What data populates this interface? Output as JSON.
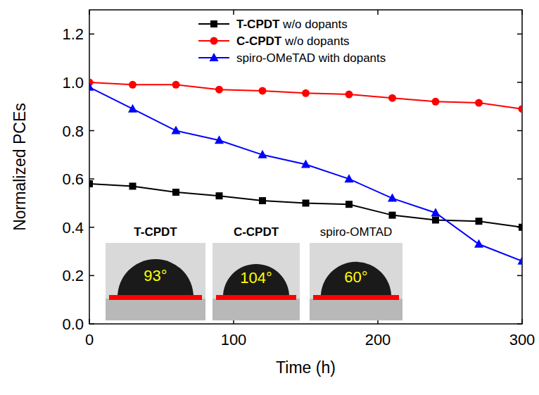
{
  "chart_data": {
    "type": "line",
    "x_label": "Time (h)",
    "y_label": "Normalized PCEs",
    "x": [
      0,
      30,
      60,
      90,
      120,
      150,
      180,
      210,
      240,
      270,
      300
    ],
    "series": [
      {
        "name": "T-CPDT w/o dopants",
        "color": "#000000",
        "marker": "square",
        "values": [
          0.58,
          0.57,
          0.545,
          0.53,
          0.51,
          0.5,
          0.495,
          0.45,
          0.43,
          0.425,
          0.4
        ]
      },
      {
        "name": "C-CPDT w/o dopants",
        "color": "#ff0000",
        "marker": "circle",
        "values": [
          1.0,
          0.99,
          0.99,
          0.97,
          0.965,
          0.955,
          0.95,
          0.935,
          0.92,
          0.915,
          0.89
        ]
      },
      {
        "name": "spiro-OMeTAD with dopants",
        "color": "#0000ff",
        "marker": "triangle",
        "values": [
          0.98,
          0.89,
          0.8,
          0.76,
          0.7,
          0.66,
          0.6,
          0.52,
          0.46,
          0.33,
          0.26
        ]
      }
    ],
    "xlim": [
      0,
      300
    ],
    "xticks": [
      0,
      100,
      200,
      300
    ],
    "ylim": [
      0,
      1.3
    ],
    "yticks": [
      {
        "value": 0,
        "label": "0.0"
      },
      0.2,
      0.4,
      0.6,
      0.8,
      {
        "value": 1,
        "label": "1.0"
      },
      1.2
    ],
    "legend": "top",
    "annotations": [
      {
        "label": "T-CPDT",
        "text": "93°"
      },
      {
        "label": "C-CPDT",
        "text": "104°"
      },
      {
        "label": "spiro-OMTAD",
        "text": "60°"
      }
    ]
  }
}
